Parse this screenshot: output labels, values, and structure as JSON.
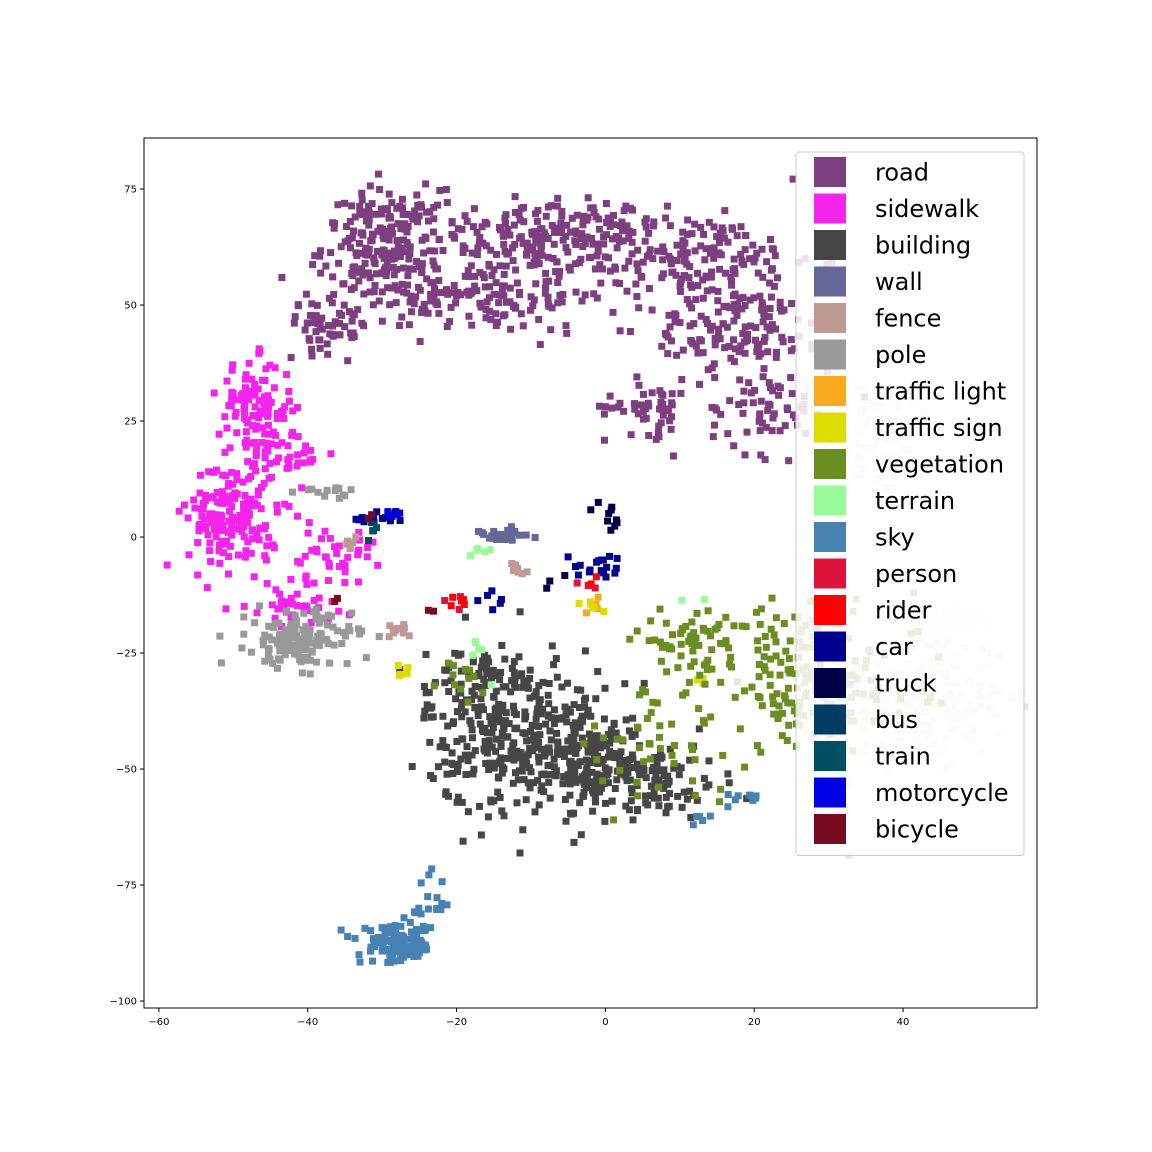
{
  "chart_data": {
    "type": "scatter",
    "title": "",
    "xlabel": "",
    "ylabel": "",
    "xlim": [
      -62,
      58
    ],
    "ylim": [
      -101.5,
      86
    ],
    "xticks": [
      -60,
      -40,
      -20,
      0,
      20,
      40
    ],
    "yticks": [
      75,
      50,
      25,
      0,
      -25,
      -50,
      -75,
      -100
    ],
    "xtick_labels": [
      "−60",
      "−40",
      "−20",
      "0",
      "20",
      "40"
    ],
    "ytick_labels": [
      "75",
      "50",
      "25",
      "0",
      "−25",
      "−50",
      "−75",
      "−100"
    ],
    "grid": false,
    "legend_position": "top-right",
    "marker": "square",
    "series": [
      {
        "name": "road",
        "color": "#7d3f7f",
        "clusters": [
          {
            "center": [
              -30,
              63
            ],
            "spread": [
              4,
              6
            ],
            "count": 180
          },
          {
            "center": [
              -8,
              65
            ],
            "spread": [
              8,
              4
            ],
            "count": 200
          },
          {
            "center": [
              -18,
              52
            ],
            "spread": [
              10,
              4
            ],
            "count": 160
          },
          {
            "center": [
              12,
              60
            ],
            "spread": [
              8,
              5
            ],
            "count": 160
          },
          {
            "center": [
              18,
              45
            ],
            "spread": [
              6,
              4
            ],
            "count": 120
          },
          {
            "center": [
              6,
              28
            ],
            "spread": [
              3,
              3
            ],
            "count": 50
          },
          {
            "center": [
              22,
              28
            ],
            "spread": [
              4,
              5
            ],
            "count": 70
          },
          {
            "center": [
              -37,
              46
            ],
            "spread": [
              3,
              3
            ],
            "count": 50
          }
        ]
      },
      {
        "name": "sidewalk",
        "color": "#f424ec",
        "clusters": [
          {
            "center": [
              -47,
              28
            ],
            "spread": [
              2.5,
              5
            ],
            "count": 110
          },
          {
            "center": [
              -50,
              5
            ],
            "spread": [
              3,
              6
            ],
            "count": 180
          },
          {
            "center": [
              -42,
              18
            ],
            "spread": [
              2,
              3
            ],
            "count": 30
          },
          {
            "center": [
              -37,
              -4
            ],
            "spread": [
              3,
              3
            ],
            "count": 40
          },
          {
            "center": [
              -42,
              -15
            ],
            "spread": [
              3,
              2
            ],
            "count": 40
          }
        ]
      },
      {
        "name": "building",
        "color": "#464646",
        "clusters": [
          {
            "center": [
              -12,
              -42
            ],
            "spread": [
              6,
              9
            ],
            "count": 330
          },
          {
            "center": [
              -2,
              -48
            ],
            "spread": [
              5,
              5
            ],
            "count": 150
          },
          {
            "center": [
              6,
              -53
            ],
            "spread": [
              5,
              4
            ],
            "count": 90
          },
          {
            "center": [
              -18,
              -30
            ],
            "spread": [
              3,
              3
            ],
            "count": 40
          }
        ]
      },
      {
        "name": "wall",
        "color": "#666699",
        "clusters": [
          {
            "center": [
              -14,
              0
            ],
            "spread": [
              2,
              0.8
            ],
            "count": 30
          }
        ]
      },
      {
        "name": "fence",
        "color": "#bf9993",
        "clusters": [
          {
            "center": [
              -12,
              -7
            ],
            "spread": [
              1,
              1
            ],
            "count": 10
          },
          {
            "center": [
              -28,
              -20
            ],
            "spread": [
              1.5,
              0.8
            ],
            "count": 10
          },
          {
            "center": [
              -34,
              -2
            ],
            "spread": [
              1.5,
              1
            ],
            "count": 8
          }
        ]
      },
      {
        "name": "pole",
        "color": "#999999",
        "clusters": [
          {
            "center": [
              -41,
              -22
            ],
            "spread": [
              3.5,
              3
            ],
            "count": 150
          },
          {
            "center": [
              -37,
              10
            ],
            "spread": [
              2,
              0.8
            ],
            "count": 15
          }
        ]
      },
      {
        "name": "traffic light",
        "color": "#faaa1e",
        "clusters": [
          {
            "center": [
              -2,
              -15
            ],
            "spread": [
              1,
              1
            ],
            "count": 4
          }
        ]
      },
      {
        "name": "traffic sign",
        "color": "#dcdc00",
        "clusters": [
          {
            "center": [
              -2,
              -15
            ],
            "spread": [
              1,
              1
            ],
            "count": 6
          },
          {
            "center": [
              -27,
              -29
            ],
            "spread": [
              1,
              1
            ],
            "count": 5
          },
          {
            "center": [
              12,
              -32
            ],
            "spread": [
              1,
              1
            ],
            "count": 3
          }
        ]
      },
      {
        "name": "vegetation",
        "color": "#6b8e23",
        "clusters": [
          {
            "center": [
              28,
              -30
            ],
            "spread": [
              7,
              8
            ],
            "count": 180
          },
          {
            "center": [
              12,
              -22
            ],
            "spread": [
              4,
              3
            ],
            "count": 60
          },
          {
            "center": [
              6,
              -45
            ],
            "spread": [
              6,
              6
            ],
            "count": 50
          },
          {
            "center": [
              -18,
              -30
            ],
            "spread": [
              2,
              2
            ],
            "count": 12
          }
        ]
      },
      {
        "name": "terrain",
        "color": "#98fb98",
        "clusters": [
          {
            "center": [
              -17,
              -3
            ],
            "spread": [
              1,
              1
            ],
            "count": 6
          },
          {
            "center": [
              -17,
              -25
            ],
            "spread": [
              1,
              2
            ],
            "count": 6
          },
          {
            "center": [
              12,
              -14
            ],
            "spread": [
              1,
              1
            ],
            "count": 2
          }
        ]
      },
      {
        "name": "sky",
        "color": "#4682b4",
        "clusters": [
          {
            "center": [
              -28,
              -88
            ],
            "spread": [
              2.5,
              2
            ],
            "count": 110
          },
          {
            "center": [
              -24,
              -80
            ],
            "spread": [
              1.5,
              4
            ],
            "count": 20
          },
          {
            "center": [
              18,
              -56
            ],
            "spread": [
              1.5,
              1
            ],
            "count": 8
          },
          {
            "center": [
              13,
              -61
            ],
            "spread": [
              2,
              1
            ],
            "count": 5
          }
        ]
      },
      {
        "name": "person",
        "color": "#dc143c",
        "clusters": [
          {
            "center": [
              -20,
              -13
            ],
            "spread": [
              1,
              1
            ],
            "count": 4
          },
          {
            "center": [
              -2,
              -11
            ],
            "spread": [
              1,
              1
            ],
            "count": 3
          }
        ]
      },
      {
        "name": "rider",
        "color": "#ff0000",
        "clusters": [
          {
            "center": [
              -20,
              -14
            ],
            "spread": [
              0.8,
              0.8
            ],
            "count": 4
          },
          {
            "center": [
              -2,
              -10
            ],
            "spread": [
              0.8,
              0.8
            ],
            "count": 2
          }
        ]
      },
      {
        "name": "car",
        "color": "#00008e",
        "clusters": [
          {
            "center": [
              -30,
              4
            ],
            "spread": [
              2,
              0.8
            ],
            "count": 15
          },
          {
            "center": [
              0,
              -6
            ],
            "spread": [
              2,
              1.5
            ],
            "count": 18
          },
          {
            "center": [
              -15,
              -14
            ],
            "spread": [
              1.5,
              1
            ],
            "count": 6
          }
        ]
      },
      {
        "name": "truck",
        "color": "#000046",
        "clusters": [
          {
            "center": [
              1,
              4
            ],
            "spread": [
              1,
              1.5
            ],
            "count": 10
          },
          {
            "center": [
              -7,
              -9
            ],
            "spread": [
              1,
              1
            ],
            "count": 3
          }
        ]
      },
      {
        "name": "bus",
        "color": "#003c64",
        "clusters": [
          {
            "center": [
              -32,
              3
            ],
            "spread": [
              1,
              1
            ],
            "count": 4
          }
        ]
      },
      {
        "name": "train",
        "color": "#005064",
        "clusters": [
          {
            "center": [
              -32,
              2
            ],
            "spread": [
              0.8,
              0.8
            ],
            "count": 3
          }
        ]
      },
      {
        "name": "motorcycle",
        "color": "#0000e6",
        "clusters": [
          {
            "center": [
              -29,
              5
            ],
            "spread": [
              0.8,
              0.6
            ],
            "count": 5
          }
        ]
      },
      {
        "name": "bicycle",
        "color": "#770b20",
        "clusters": [
          {
            "center": [
              -23,
              -16
            ],
            "spread": [
              0.5,
              0.5
            ],
            "count": 2
          },
          {
            "center": [
              -32,
              5
            ],
            "spread": [
              0.5,
              0.5
            ],
            "count": 2
          },
          {
            "center": [
              -36,
              -14
            ],
            "spread": [
              0.5,
              0.5
            ],
            "count": 2
          }
        ]
      },
      {
        "name": "",
        "color": "#e4dbe6",
        "clusters": [
          {
            "center": [
              37,
              22
            ],
            "spread": [
              4,
              7
            ],
            "count": 80
          }
        ]
      },
      {
        "name": "",
        "color": "#e3e8d7",
        "clusters": [
          {
            "center": [
              42,
              -35
            ],
            "spread": [
              6,
              8
            ],
            "count": 220
          }
        ]
      },
      {
        "name": "",
        "color": "#e6fbe6",
        "clusters": [
          {
            "center": [
              47,
              -18
            ],
            "spread": [
              3,
              1.5
            ],
            "count": 40
          }
        ]
      }
    ]
  }
}
